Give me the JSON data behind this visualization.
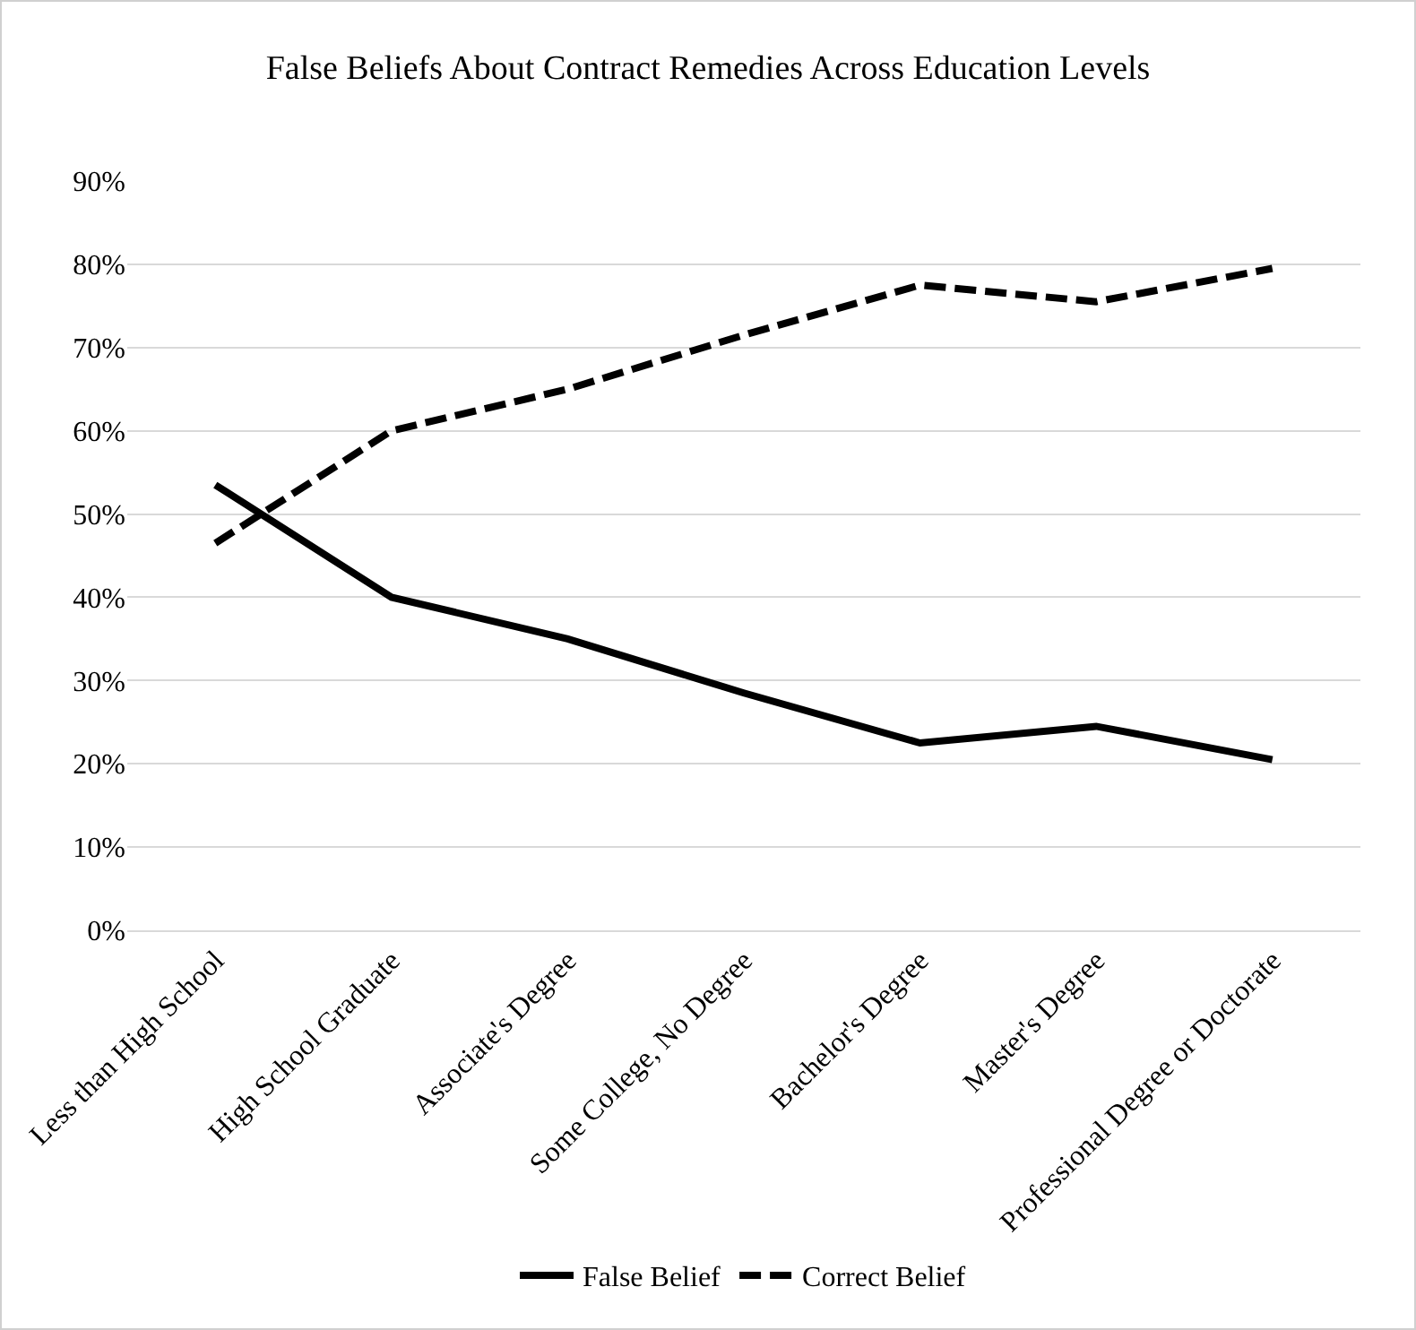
{
  "chart_data": {
    "type": "line",
    "title": "False Beliefs About Contract Remedies Across Education Levels",
    "categories": [
      "Less than High School",
      "High School Graduate",
      "Associate's Degree",
      "Some College, No Degree",
      "Bachelor's Degree",
      "Master's Degree",
      "Professional Degree or Doctorate"
    ],
    "series": [
      {
        "name": "False Belief",
        "color": "#000000",
        "line_style": "solid",
        "values": [
          53.5,
          40,
          35,
          28.5,
          22.5,
          24.5,
          20.5
        ]
      },
      {
        "name": "Correct Belief",
        "color": "#000000",
        "line_style": "dashed",
        "values": [
          46.5,
          60,
          65,
          71.5,
          77.5,
          75.5,
          79.5
        ]
      }
    ],
    "ylim": [
      0,
      90
    ],
    "yticks": [
      {
        "value": 0,
        "label": "0%"
      },
      {
        "value": 10,
        "label": "10%"
      },
      {
        "value": 20,
        "label": "20%"
      },
      {
        "value": 30,
        "label": "30%"
      },
      {
        "value": 40,
        "label": "40%"
      },
      {
        "value": 50,
        "label": "50%"
      },
      {
        "value": 60,
        "label": "60%"
      },
      {
        "value": 70,
        "label": "70%"
      },
      {
        "value": 80,
        "label": "80%"
      },
      {
        "value": 90,
        "label": "90%"
      }
    ],
    "grid": "y",
    "legend": "bottom",
    "marker": "none"
  }
}
